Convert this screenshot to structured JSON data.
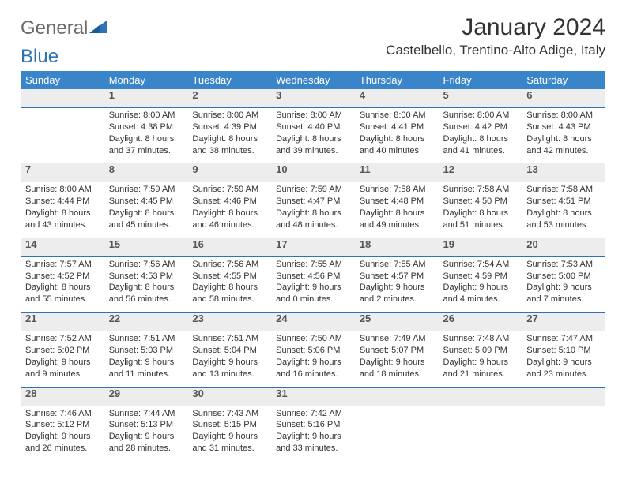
{
  "brand": {
    "part1": "General",
    "part2": "Blue"
  },
  "title": "January 2024",
  "location": "Castelbello, Trentino-Alto Adige, Italy",
  "colors": {
    "header_bg": "#3a85c9",
    "header_text": "#ffffff",
    "rule": "#2f73b6",
    "daynum_bg": "#ededed",
    "text": "#333333"
  },
  "dayNames": [
    "Sunday",
    "Monday",
    "Tuesday",
    "Wednesday",
    "Thursday",
    "Friday",
    "Saturday"
  ],
  "weeks": [
    [
      null,
      {
        "n": "1",
        "sr": "8:00 AM",
        "ss": "4:38 PM",
        "dl1": "Daylight: 8 hours",
        "dl2": "and 37 minutes."
      },
      {
        "n": "2",
        "sr": "8:00 AM",
        "ss": "4:39 PM",
        "dl1": "Daylight: 8 hours",
        "dl2": "and 38 minutes."
      },
      {
        "n": "3",
        "sr": "8:00 AM",
        "ss": "4:40 PM",
        "dl1": "Daylight: 8 hours",
        "dl2": "and 39 minutes."
      },
      {
        "n": "4",
        "sr": "8:00 AM",
        "ss": "4:41 PM",
        "dl1": "Daylight: 8 hours",
        "dl2": "and 40 minutes."
      },
      {
        "n": "5",
        "sr": "8:00 AM",
        "ss": "4:42 PM",
        "dl1": "Daylight: 8 hours",
        "dl2": "and 41 minutes."
      },
      {
        "n": "6",
        "sr": "8:00 AM",
        "ss": "4:43 PM",
        "dl1": "Daylight: 8 hours",
        "dl2": "and 42 minutes."
      }
    ],
    [
      {
        "n": "7",
        "sr": "8:00 AM",
        "ss": "4:44 PM",
        "dl1": "Daylight: 8 hours",
        "dl2": "and 43 minutes."
      },
      {
        "n": "8",
        "sr": "7:59 AM",
        "ss": "4:45 PM",
        "dl1": "Daylight: 8 hours",
        "dl2": "and 45 minutes."
      },
      {
        "n": "9",
        "sr": "7:59 AM",
        "ss": "4:46 PM",
        "dl1": "Daylight: 8 hours",
        "dl2": "and 46 minutes."
      },
      {
        "n": "10",
        "sr": "7:59 AM",
        "ss": "4:47 PM",
        "dl1": "Daylight: 8 hours",
        "dl2": "and 48 minutes."
      },
      {
        "n": "11",
        "sr": "7:58 AM",
        "ss": "4:48 PM",
        "dl1": "Daylight: 8 hours",
        "dl2": "and 49 minutes."
      },
      {
        "n": "12",
        "sr": "7:58 AM",
        "ss": "4:50 PM",
        "dl1": "Daylight: 8 hours",
        "dl2": "and 51 minutes."
      },
      {
        "n": "13",
        "sr": "7:58 AM",
        "ss": "4:51 PM",
        "dl1": "Daylight: 8 hours",
        "dl2": "and 53 minutes."
      }
    ],
    [
      {
        "n": "14",
        "sr": "7:57 AM",
        "ss": "4:52 PM",
        "dl1": "Daylight: 8 hours",
        "dl2": "and 55 minutes."
      },
      {
        "n": "15",
        "sr": "7:56 AM",
        "ss": "4:53 PM",
        "dl1": "Daylight: 8 hours",
        "dl2": "and 56 minutes."
      },
      {
        "n": "16",
        "sr": "7:56 AM",
        "ss": "4:55 PM",
        "dl1": "Daylight: 8 hours",
        "dl2": "and 58 minutes."
      },
      {
        "n": "17",
        "sr": "7:55 AM",
        "ss": "4:56 PM",
        "dl1": "Daylight: 9 hours",
        "dl2": "and 0 minutes."
      },
      {
        "n": "18",
        "sr": "7:55 AM",
        "ss": "4:57 PM",
        "dl1": "Daylight: 9 hours",
        "dl2": "and 2 minutes."
      },
      {
        "n": "19",
        "sr": "7:54 AM",
        "ss": "4:59 PM",
        "dl1": "Daylight: 9 hours",
        "dl2": "and 4 minutes."
      },
      {
        "n": "20",
        "sr": "7:53 AM",
        "ss": "5:00 PM",
        "dl1": "Daylight: 9 hours",
        "dl2": "and 7 minutes."
      }
    ],
    [
      {
        "n": "21",
        "sr": "7:52 AM",
        "ss": "5:02 PM",
        "dl1": "Daylight: 9 hours",
        "dl2": "and 9 minutes."
      },
      {
        "n": "22",
        "sr": "7:51 AM",
        "ss": "5:03 PM",
        "dl1": "Daylight: 9 hours",
        "dl2": "and 11 minutes."
      },
      {
        "n": "23",
        "sr": "7:51 AM",
        "ss": "5:04 PM",
        "dl1": "Daylight: 9 hours",
        "dl2": "and 13 minutes."
      },
      {
        "n": "24",
        "sr": "7:50 AM",
        "ss": "5:06 PM",
        "dl1": "Daylight: 9 hours",
        "dl2": "and 16 minutes."
      },
      {
        "n": "25",
        "sr": "7:49 AM",
        "ss": "5:07 PM",
        "dl1": "Daylight: 9 hours",
        "dl2": "and 18 minutes."
      },
      {
        "n": "26",
        "sr": "7:48 AM",
        "ss": "5:09 PM",
        "dl1": "Daylight: 9 hours",
        "dl2": "and 21 minutes."
      },
      {
        "n": "27",
        "sr": "7:47 AM",
        "ss": "5:10 PM",
        "dl1": "Daylight: 9 hours",
        "dl2": "and 23 minutes."
      }
    ],
    [
      {
        "n": "28",
        "sr": "7:46 AM",
        "ss": "5:12 PM",
        "dl1": "Daylight: 9 hours",
        "dl2": "and 26 minutes."
      },
      {
        "n": "29",
        "sr": "7:44 AM",
        "ss": "5:13 PM",
        "dl1": "Daylight: 9 hours",
        "dl2": "and 28 minutes."
      },
      {
        "n": "30",
        "sr": "7:43 AM",
        "ss": "5:15 PM",
        "dl1": "Daylight: 9 hours",
        "dl2": "and 31 minutes."
      },
      {
        "n": "31",
        "sr": "7:42 AM",
        "ss": "5:16 PM",
        "dl1": "Daylight: 9 hours",
        "dl2": "and 33 minutes."
      },
      null,
      null,
      null
    ]
  ],
  "labels": {
    "sunrise": "Sunrise:",
    "sunset": "Sunset:"
  }
}
